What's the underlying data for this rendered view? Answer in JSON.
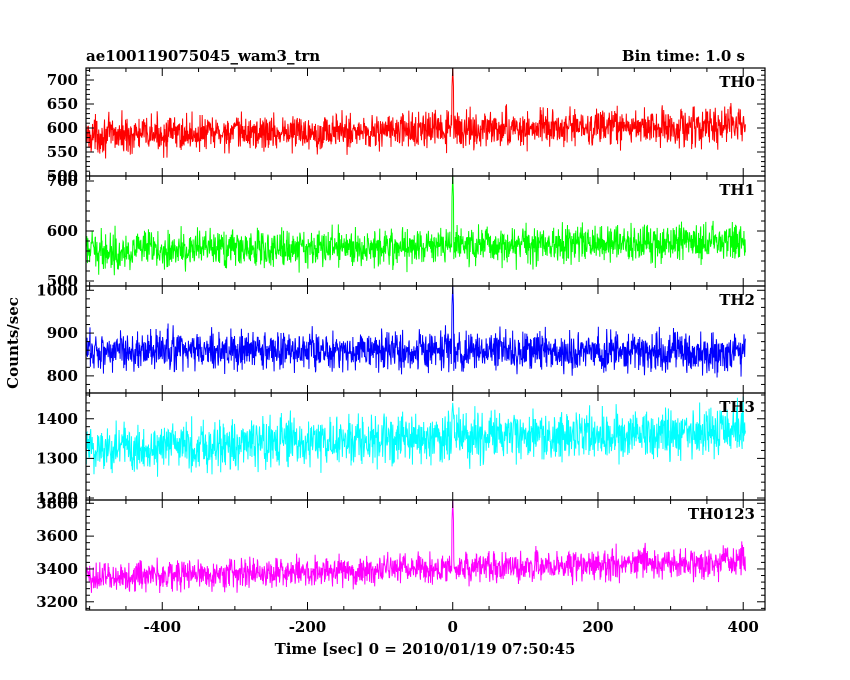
{
  "header": {
    "title": "ae100119075045_wam3_trn",
    "bin_time": "Bin time: 1.0 s"
  },
  "axes": {
    "ylabel": "Counts/sec",
    "xlabel": "Time [sec] 0 = 2010/01/19 07:50:45",
    "xlim": [
      -505,
      430
    ],
    "xticks": [
      -400,
      -200,
      0,
      200,
      400
    ]
  },
  "chart_data": [
    {
      "type": "line",
      "series": [
        {
          "name": "TH0",
          "color": "#ff0000"
        }
      ],
      "ylim": [
        500,
        725
      ],
      "yticks": [
        500,
        550,
        600,
        650,
        700
      ],
      "x_range": [
        -505,
        403
      ],
      "approx": {
        "mean_start": 585,
        "mean_end": 605,
        "noise": 32,
        "spike_at_0": 725
      }
    },
    {
      "type": "line",
      "series": [
        {
          "name": "TH1",
          "color": "#00ff00"
        }
      ],
      "ylim": [
        490,
        710
      ],
      "yticks": [
        500,
        600,
        700
      ],
      "x_range": [
        -505,
        403
      ],
      "approx": {
        "mean_start": 560,
        "mean_end": 580,
        "noise": 32,
        "spike_at_0": 710
      }
    },
    {
      "type": "line",
      "series": [
        {
          "name": "TH2",
          "color": "#0000ff"
        }
      ],
      "ylim": [
        760,
        1010
      ],
      "yticks": [
        800,
        900,
        1000
      ],
      "x_range": [
        -505,
        403
      ],
      "approx": {
        "mean_start": 860,
        "mean_end": 855,
        "noise": 40,
        "spike_at_0": 1010
      }
    },
    {
      "type": "line",
      "series": [
        {
          "name": "TH3",
          "color": "#00ffff"
        }
      ],
      "ylim": [
        1195,
        1465
      ],
      "yticks": [
        1200,
        1300,
        1400
      ],
      "x_range": [
        -505,
        403
      ],
      "approx": {
        "mean_start": 1325,
        "mean_end": 1370,
        "noise": 55,
        "spike_at_0": 1440
      }
    },
    {
      "type": "line",
      "series": [
        {
          "name": "TH0123",
          "color": "#ff00ff"
        }
      ],
      "ylim": [
        3150,
        3820
      ],
      "yticks": [
        3200,
        3400,
        3600,
        3800
      ],
      "x_range": [
        -505,
        403
      ],
      "approx": {
        "mean_start": 3350,
        "mean_end": 3450,
        "noise": 80,
        "spike_at_0": 3820
      }
    }
  ]
}
